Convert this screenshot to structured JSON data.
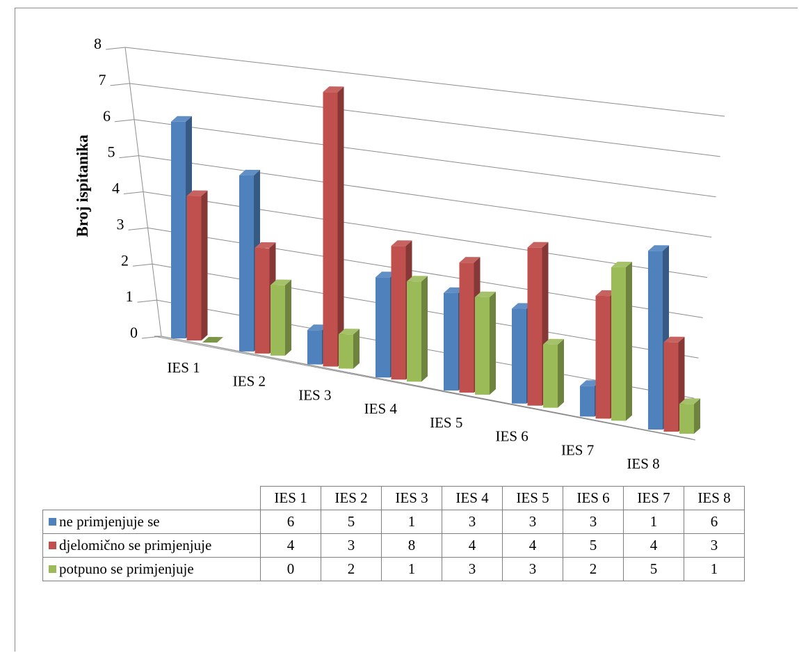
{
  "chart_data": {
    "type": "bar",
    "variant": "3d-clustered-column",
    "title": "",
    "xlabel": "",
    "ylabel": "Broj ispitanika",
    "ylim": [
      0,
      8
    ],
    "yticks": [
      "0",
      "1",
      "2",
      "3",
      "4",
      "5",
      "6",
      "7",
      "8"
    ],
    "grid": true,
    "legend": "data-table-below",
    "categories": [
      "IES 1",
      "IES 2",
      "IES 3",
      "IES 4",
      "IES 5",
      "IES 6",
      "IES 7",
      "IES 8"
    ],
    "series": [
      {
        "name": "ne primjenjuje se",
        "color": "#4f81bd",
        "values": [
          6,
          5,
          1,
          3,
          3,
          3,
          1,
          6
        ]
      },
      {
        "name": "djelomično se primjenjuje",
        "color": "#c0504d",
        "values": [
          4,
          3,
          8,
          4,
          4,
          5,
          4,
          3
        ]
      },
      {
        "name": "potpuno se primjenjuje",
        "color": "#9bbb59",
        "values": [
          0,
          2,
          1,
          3,
          3,
          2,
          5,
          1
        ]
      }
    ]
  }
}
